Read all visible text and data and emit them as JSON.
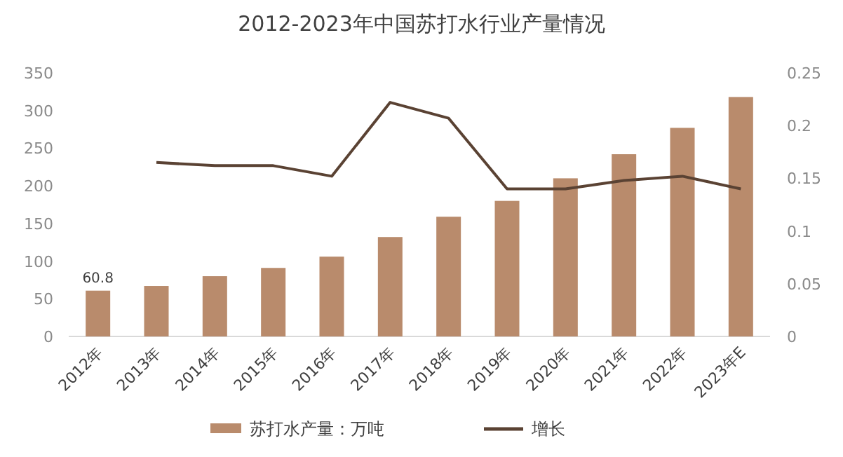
{
  "chart_data": {
    "type": "bar",
    "title": "2012-2023年中国苏打水行业产量情况",
    "categories": [
      "2012年",
      "2013年",
      "2014年",
      "2015年",
      "2016年",
      "2017年",
      "2018年",
      "2019年",
      "2020年",
      "2021年",
      "2022年",
      "2023年E"
    ],
    "series": [
      {
        "name": "苏打水产量：万吨",
        "color": "#b98b6c",
        "values": [
          60.8,
          67,
          80,
          91,
          106,
          132,
          159,
          180,
          210,
          242,
          277,
          318
        ],
        "value_labels": [
          "60.8",
          null,
          null,
          null,
          null,
          null,
          null,
          null,
          null,
          null,
          null,
          null
        ]
      },
      {
        "name": "增长",
        "type": "line",
        "axis": "y2",
        "color": "#5a4233",
        "values": [
          null,
          0.165,
          0.162,
          0.162,
          0.152,
          0.222,
          0.207,
          0.14,
          0.14,
          0.148,
          0.152,
          0.14
        ]
      }
    ],
    "ylim": [
      0,
      350
    ],
    "yticks": [
      0,
      50,
      100,
      150,
      200,
      250,
      300,
      350
    ],
    "y2lim": [
      0,
      0.25
    ],
    "y2ticks": [
      0,
      0.05,
      0.1,
      0.15,
      0.2,
      0.25
    ],
    "legend": "bottom"
  }
}
